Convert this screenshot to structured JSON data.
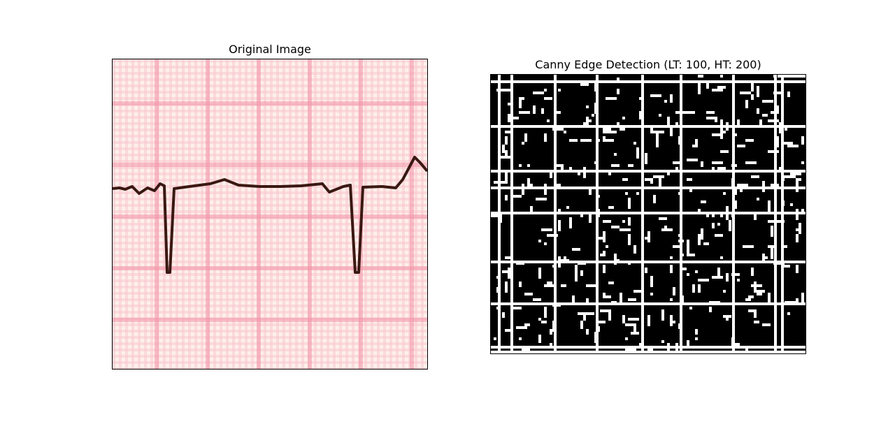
{
  "figure": {
    "left_title": "Original Image",
    "right_title": "Canny Edge Detection (LT: 100, HT: 200)"
  },
  "colors": {
    "paper": "#fdf0ea",
    "grid_light": "#f9c9cf",
    "grid_strong": "#f294a8",
    "trace": "#3a1812",
    "edge_bg": "#000000",
    "edge_line": "#ffffff"
  }
}
